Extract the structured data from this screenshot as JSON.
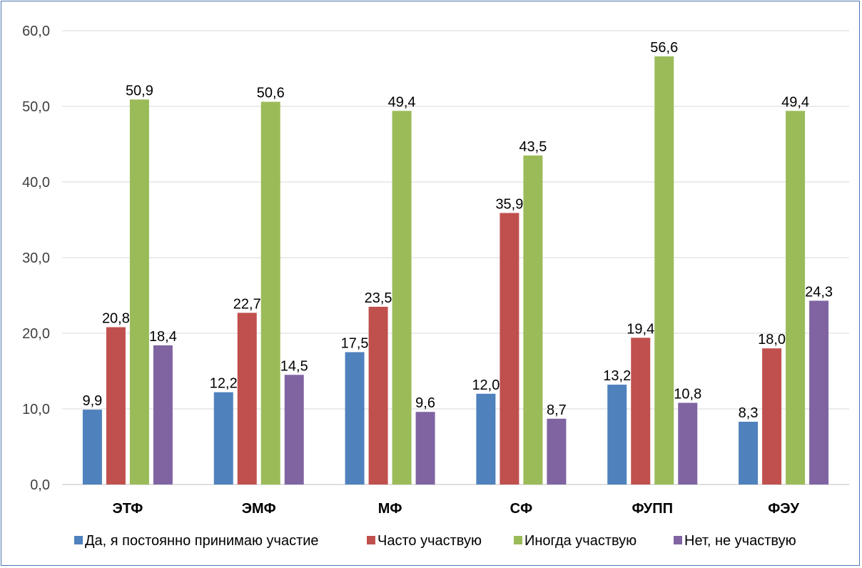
{
  "chart_data": {
    "type": "bar",
    "categories": [
      "ЭТФ",
      "ЭМФ",
      "МФ",
      "СФ",
      "ФУПП",
      "ФЭУ"
    ],
    "series": [
      {
        "name": "Да, я постоянно принимаю участие",
        "color": "#4f81bd",
        "values": [
          9.9,
          12.2,
          17.5,
          12.0,
          13.2,
          8.3
        ]
      },
      {
        "name": "Часто участвую",
        "color": "#c0504d",
        "values": [
          20.8,
          22.7,
          23.5,
          35.9,
          19.4,
          18.0
        ]
      },
      {
        "name": "Иногда участвую",
        "color": "#9bbb59",
        "values": [
          50.9,
          50.6,
          49.4,
          43.5,
          56.6,
          49.4
        ]
      },
      {
        "name": "Нет, не участвую",
        "color": "#8064a2",
        "values": [
          18.4,
          14.5,
          9.6,
          8.7,
          10.8,
          24.3
        ]
      }
    ],
    "ylim": [
      0,
      60
    ],
    "yticks": [
      "0,0",
      "10,0",
      "20,0",
      "30,0",
      "40,0",
      "50,0",
      "60,0"
    ],
    "grid": true,
    "legend_position": "bottom",
    "data_labels": [
      [
        "9,9",
        "20,8",
        "50,9",
        "18,4"
      ],
      [
        "12,2",
        "22,7",
        "50,6",
        "14,5"
      ],
      [
        "17,5",
        "23,5",
        "49,4",
        "9,6"
      ],
      [
        "12,0",
        "35,9",
        "43,5",
        "8,7"
      ],
      [
        "13,2",
        "19,4",
        "56,6",
        "10,8"
      ],
      [
        "8,3",
        "18,0",
        "49,4",
        "24,3"
      ]
    ]
  }
}
